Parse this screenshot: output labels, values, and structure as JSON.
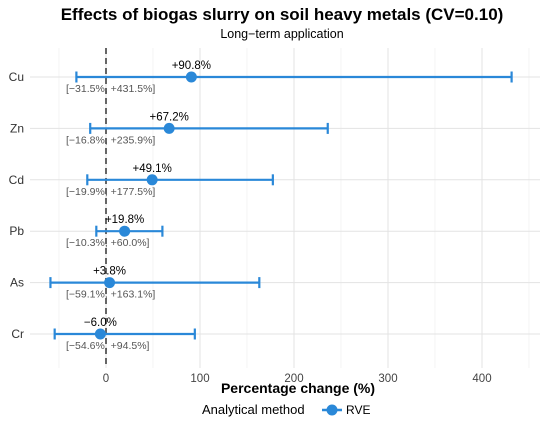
{
  "chart_data": {
    "type": "forest",
    "title": "Effects of biogas slurry on soil heavy metals (CV=0.10)",
    "subtitle": "Long−term application",
    "xlabel": "Percentage change (%)",
    "xlim": [
      -65,
      450
    ],
    "xticks": [
      0,
      100,
      200,
      300,
      400
    ],
    "reference_line": 0,
    "series": [
      {
        "name": "RVE",
        "color": "#2a88d8"
      }
    ],
    "rows": [
      {
        "category": "Cu",
        "estimate": 90.8,
        "lower": -31.5,
        "upper": 431.5,
        "value_label": "+90.8%",
        "ci_label": "[−31.5%, +431.5%]"
      },
      {
        "category": "Zn",
        "estimate": 67.2,
        "lower": -16.8,
        "upper": 235.9,
        "value_label": "+67.2%",
        "ci_label": "[−16.8%, +235.9%]"
      },
      {
        "category": "Cd",
        "estimate": 49.1,
        "lower": -19.9,
        "upper": 177.5,
        "value_label": "+49.1%",
        "ci_label": "[−19.9%, +177.5%]"
      },
      {
        "category": "Pb",
        "estimate": 19.8,
        "lower": -10.3,
        "upper": 60.0,
        "value_label": "+19.8%",
        "ci_label": "[−10.3%, +60.0%]"
      },
      {
        "category": "As",
        "estimate": 3.8,
        "lower": -59.1,
        "upper": 163.1,
        "value_label": "+3.8%",
        "ci_label": "[−59.1%, +163.1%]"
      },
      {
        "category": "Cr",
        "estimate": -6.0,
        "lower": -54.6,
        "upper": 94.5,
        "value_label": "−6.0%",
        "ci_label": "[−54.6%, +94.5%]"
      }
    ],
    "grid": true,
    "legend": {
      "title": "Analytical method",
      "position": "bottom"
    }
  }
}
